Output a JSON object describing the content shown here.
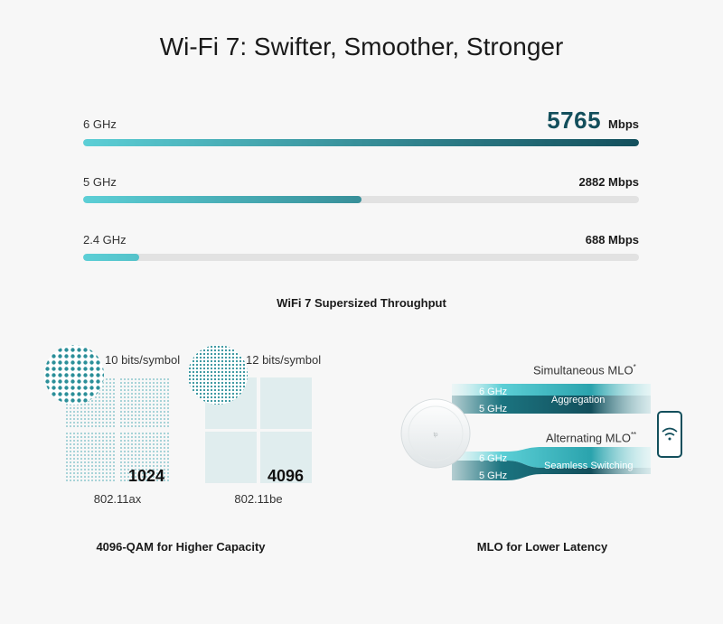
{
  "title": "Wi-Fi 7: Swifter, Smoother, Stronger",
  "throughput": {
    "caption": "WiFi 7 Supersized Throughput",
    "bands": [
      {
        "label": "6 GHz",
        "value": "5765",
        "unit": "Mbps",
        "fraction": 1.0
      },
      {
        "label": "5 GHz",
        "value": "2882 Mbps",
        "fraction": 0.5
      },
      {
        "label": "2.4 GHz",
        "value": "688 Mbps",
        "fraction": 0.1
      }
    ],
    "colors": {
      "start": "#5ccfd6",
      "end": "#134f5c",
      "track": "#e2e2e2"
    }
  },
  "qam": {
    "caption": "4096-QAM for Higher Capacity",
    "items": [
      {
        "bits": "10 bits/symbol",
        "count": "1024",
        "standard": "802.11ax"
      },
      {
        "bits": "12 bits/symbol",
        "count": "4096",
        "standard": "802.11be"
      }
    ],
    "dot_color": "#2b8f99"
  },
  "mlo": {
    "caption": "MLO for Lower Latency",
    "simultaneous": {
      "title": "Simultaneous MLO",
      "mark": "*",
      "band_a": "6 GHz",
      "band_b": "5 GHz",
      "label": "Aggregation"
    },
    "alternating": {
      "title": "Alternating MLO",
      "mark": "**",
      "band_a": "6 GHz",
      "band_b": "5 GHz",
      "label": "Seamless Switching"
    },
    "icons": {
      "access_point": "ceiling-access-point-icon",
      "phone": "smartphone-wifi-icon"
    }
  }
}
